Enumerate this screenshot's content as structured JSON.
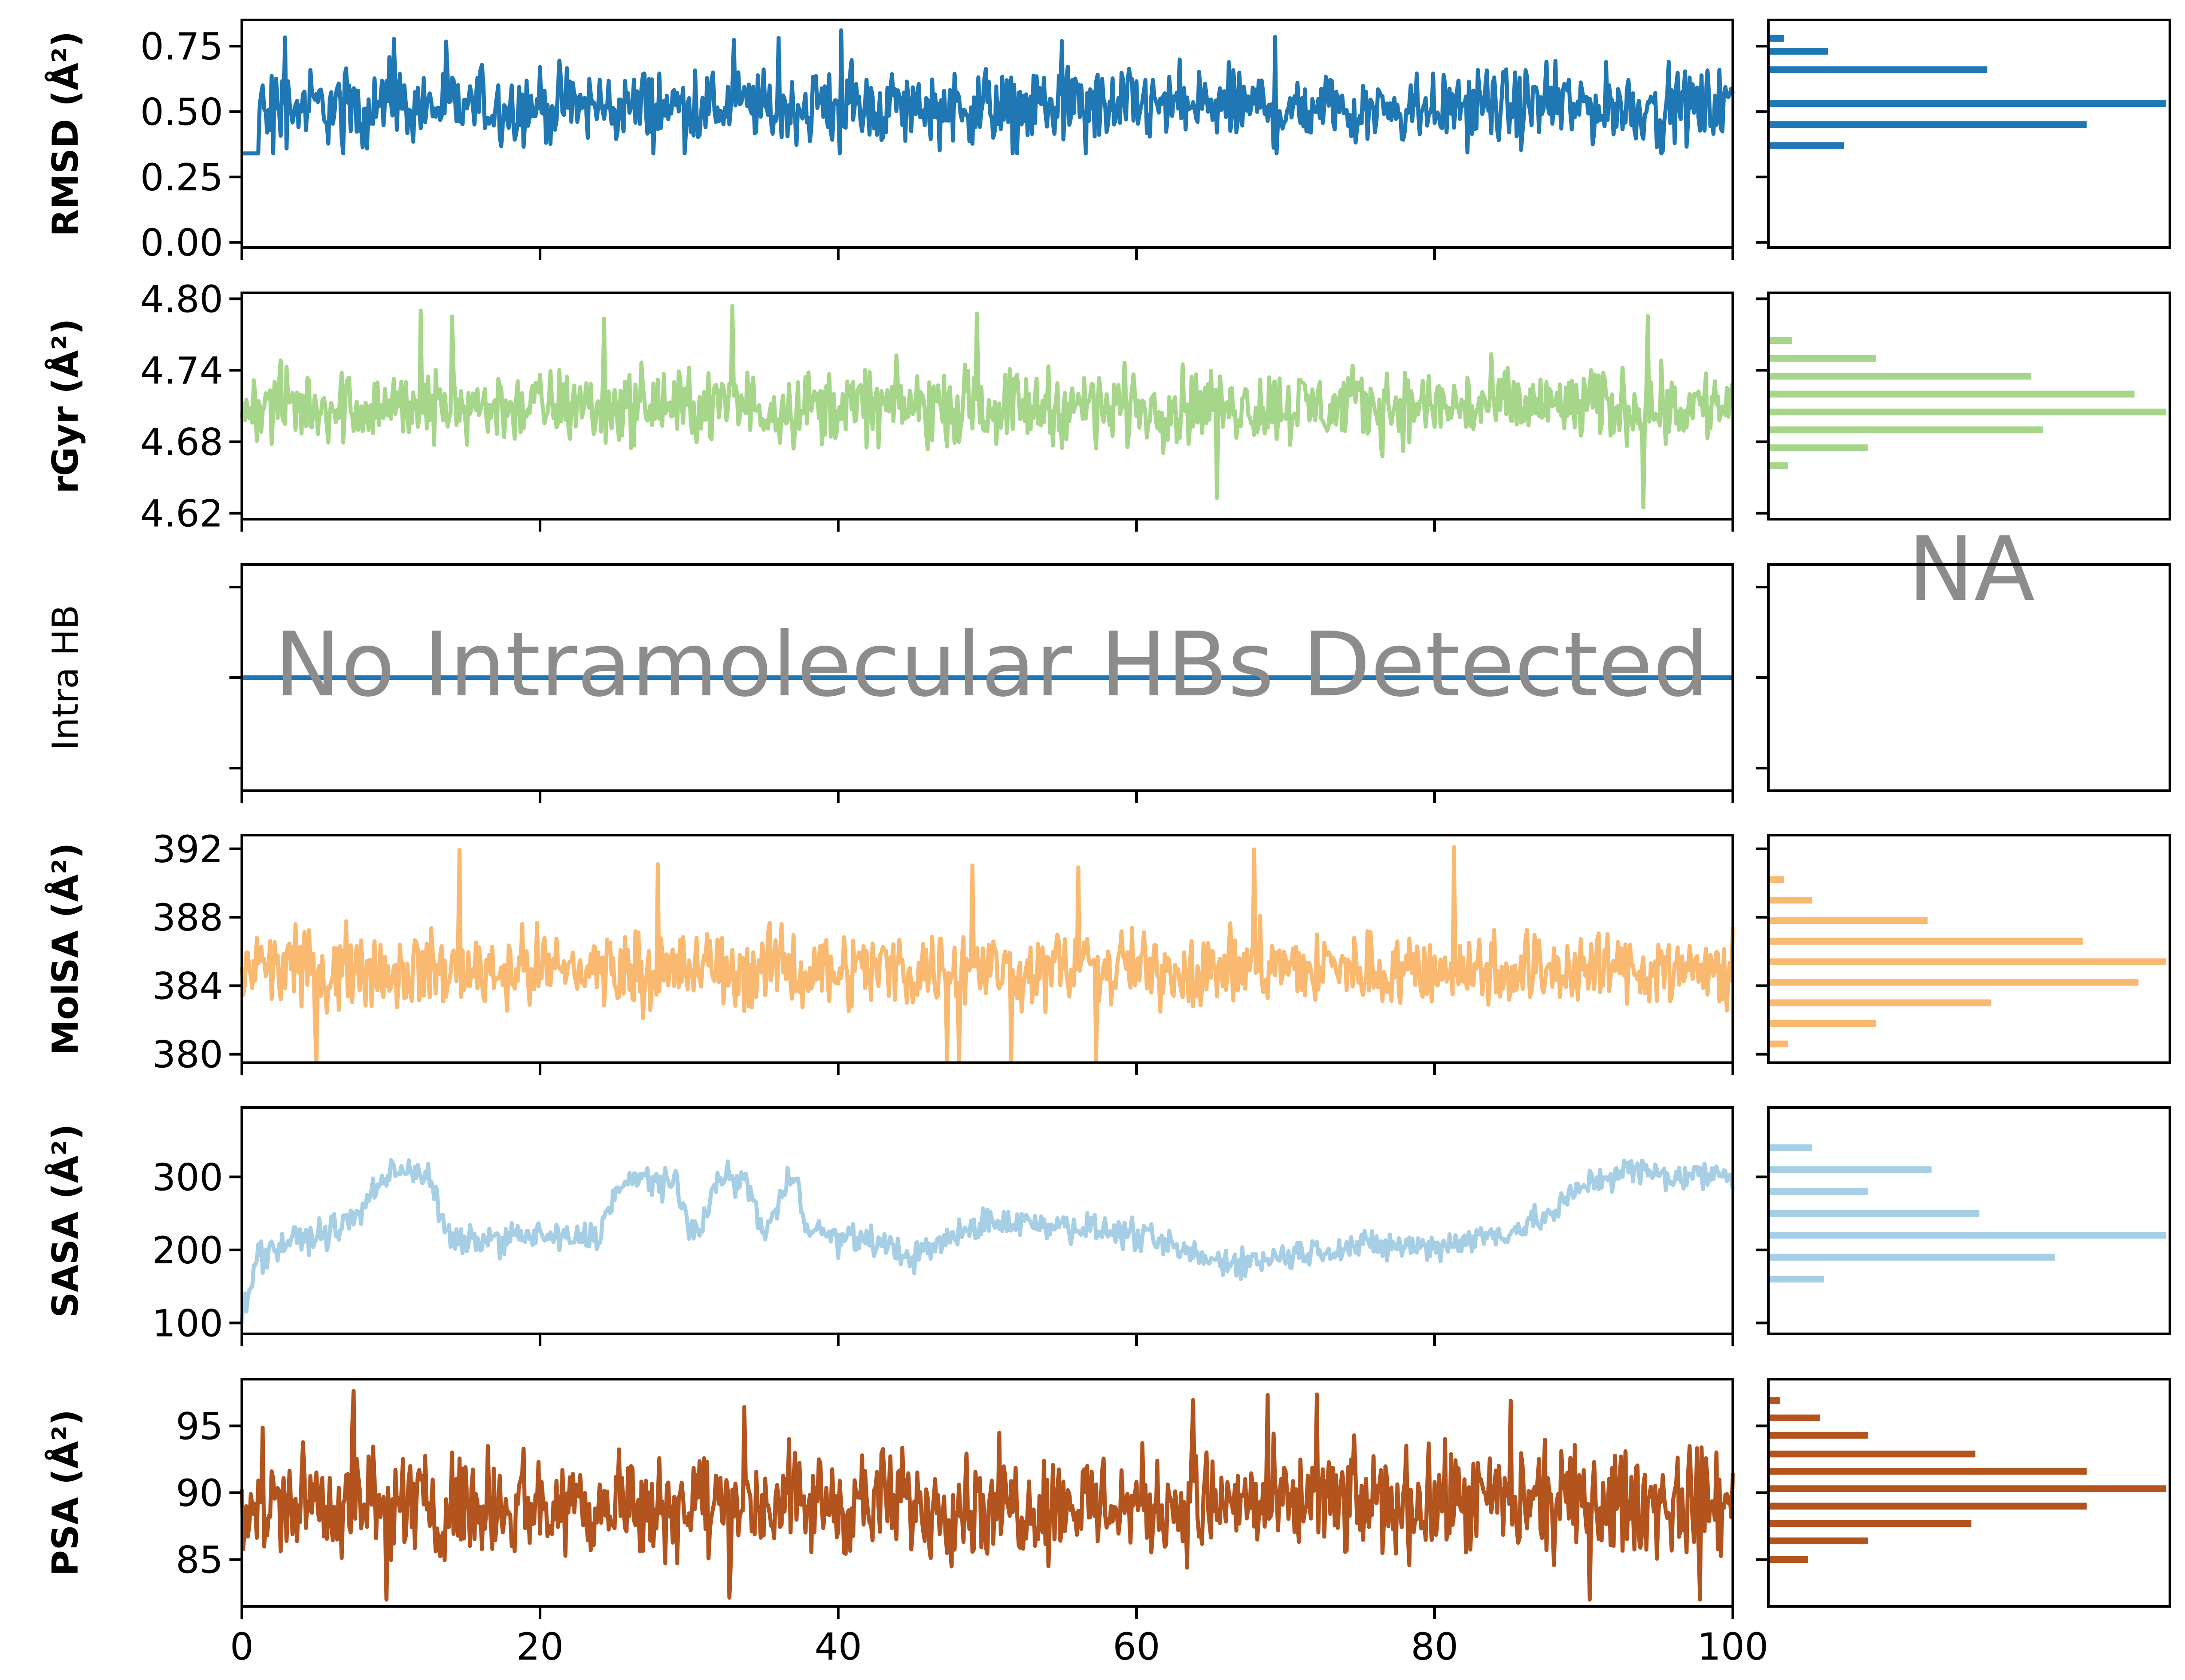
{
  "chart_data": {
    "type": "line",
    "x_ticks": [
      "0",
      "20",
      "40",
      "60",
      "80",
      "100"
    ],
    "xlim": [
      0,
      100
    ],
    "panels": [
      {
        "id": "rmsd",
        "ylabel": "RMSD (Å²)",
        "ylabel_bold": true,
        "color": "#1f77b4",
        "ylim": [
          -0.02,
          0.85
        ],
        "yticks": [
          0.0,
          0.25,
          0.5,
          0.75
        ],
        "ytick_labels": [
          "0.00",
          "0.25",
          "0.50",
          "0.75"
        ],
        "trace": {
          "start": 0.0,
          "ramp_to": 0.3,
          "ramp_end": 1.2,
          "mean": 0.52,
          "amplitude": 0.1,
          "min": 0.34,
          "max": 0.82
        },
        "hist": {
          "bins": [
            0.78,
            0.73,
            0.66,
            0.53,
            0.45,
            0.37
          ],
          "counts": [
            0.04,
            0.15,
            0.55,
            1.0,
            0.8,
            0.19
          ]
        }
      },
      {
        "id": "rgyr",
        "ylabel": "rGyr (Å²)",
        "ylabel_bold": true,
        "color": "#a6d68a",
        "ylim": [
          4.615,
          4.805
        ],
        "yticks": [
          4.62,
          4.68,
          4.74,
          4.8
        ],
        "ytick_labels": [
          "4.62",
          "4.68",
          "4.74",
          "4.80"
        ],
        "trace": {
          "mean": 4.71,
          "amplitude": 0.022,
          "min": 4.625,
          "max": 4.8
        },
        "hist": {
          "bins": [
            4.765,
            4.75,
            4.735,
            4.72,
            4.705,
            4.69,
            4.675,
            4.66
          ],
          "counts": [
            0.06,
            0.27,
            0.66,
            0.92,
            1.0,
            0.69,
            0.25,
            0.05
          ]
        }
      },
      {
        "id": "intrahb",
        "ylabel": "Intra HB",
        "ylabel_bold": false,
        "color": "#1f77b4",
        "ylim": [
          -1,
          1
        ],
        "yticks": [
          -0.8,
          0.0,
          0.8
        ],
        "ytick_labels": [
          "",
          "",
          ""
        ],
        "trace": {
          "constant": 0
        },
        "note": "No Intramolecular HBs Detected",
        "hist_note": "NA"
      },
      {
        "id": "molsa",
        "ylabel": "MolSA (Å²)",
        "ylabel_bold": true,
        "color": "#f9b971",
        "ylim": [
          379.5,
          392.8
        ],
        "yticks": [
          380,
          384,
          388,
          392
        ],
        "ytick_labels": [
          "380",
          "384",
          "388",
          "392"
        ],
        "trace": {
          "mean": 385,
          "amplitude": 1.6,
          "min": 379.6,
          "max": 392.2
        },
        "hist": {
          "bins": [
            390.2,
            389.0,
            387.8,
            386.6,
            385.4,
            384.2,
            383.0,
            381.8,
            380.6
          ],
          "counts": [
            0.04,
            0.11,
            0.4,
            0.79,
            1.0,
            0.93,
            0.56,
            0.27,
            0.05
          ]
        }
      },
      {
        "id": "sasa",
        "ylabel": "SASA (Å²)",
        "ylabel_bold": true,
        "color": "#a6cfe6",
        "ylim": [
          85,
          395
        ],
        "yticks": [
          100,
          200,
          300
        ],
        "ytick_labels": [
          "100",
          "200",
          "300"
        ],
        "trace": {
          "keypoints": [
            [
              0,
              110
            ],
            [
              1,
              190
            ],
            [
              3,
              210
            ],
            [
              6,
              225
            ],
            [
              8,
              250
            ],
            [
              9,
              290
            ],
            [
              11,
              315
            ],
            [
              12.5,
              300
            ],
            [
              14,
              210
            ],
            [
              17,
              215
            ],
            [
              19,
              220
            ],
            [
              22,
              215
            ],
            [
              24,
              220
            ],
            [
              25,
              280
            ],
            [
              27,
              300
            ],
            [
              29,
              290
            ],
            [
              30,
              230
            ],
            [
              31,
              240
            ],
            [
              32,
              300
            ],
            [
              34,
              290
            ],
            [
              35,
              220
            ],
            [
              36,
              260
            ],
            [
              37,
              310
            ],
            [
              38,
              230
            ],
            [
              40,
              215
            ],
            [
              42,
              215
            ],
            [
              45,
              190
            ],
            [
              50,
              240
            ],
            [
              55,
              235
            ],
            [
              60,
              220
            ],
            [
              65,
              185
            ],
            [
              68,
              185
            ],
            [
              72,
              200
            ],
            [
              75,
              205
            ],
            [
              80,
              205
            ],
            [
              85,
              225
            ],
            [
              88,
              250
            ],
            [
              90,
              290
            ],
            [
              93,
              310
            ],
            [
              96,
              300
            ],
            [
              100,
              305
            ]
          ],
          "amplitude": 14,
          "min": 100,
          "max": 380
        },
        "hist": {
          "bins": [
            340,
            310,
            280,
            250,
            220,
            190,
            160
          ],
          "counts": [
            0.11,
            0.41,
            0.25,
            0.53,
            1.0,
            0.72,
            0.14
          ]
        }
      },
      {
        "id": "psa",
        "ylabel": "PSA (Å²)",
        "ylabel_bold": true,
        "color": "#b3541e",
        "ylim": [
          81.5,
          98.5
        ],
        "yticks": [
          85,
          90,
          95
        ],
        "ytick_labels": [
          "85",
          "90",
          "95"
        ],
        "trace": {
          "mean": 89.2,
          "amplitude": 2.8,
          "min": 82,
          "max": 97.8
        },
        "hist": {
          "bins": [
            96.9,
            95.6,
            94.3,
            92.9,
            91.6,
            90.3,
            89.0,
            87.7,
            86.4,
            85.0,
            83.7
          ],
          "counts": [
            0.03,
            0.13,
            0.25,
            0.52,
            0.8,
            1.0,
            0.8,
            0.51,
            0.25,
            0.1,
            0.0
          ]
        }
      }
    ]
  }
}
